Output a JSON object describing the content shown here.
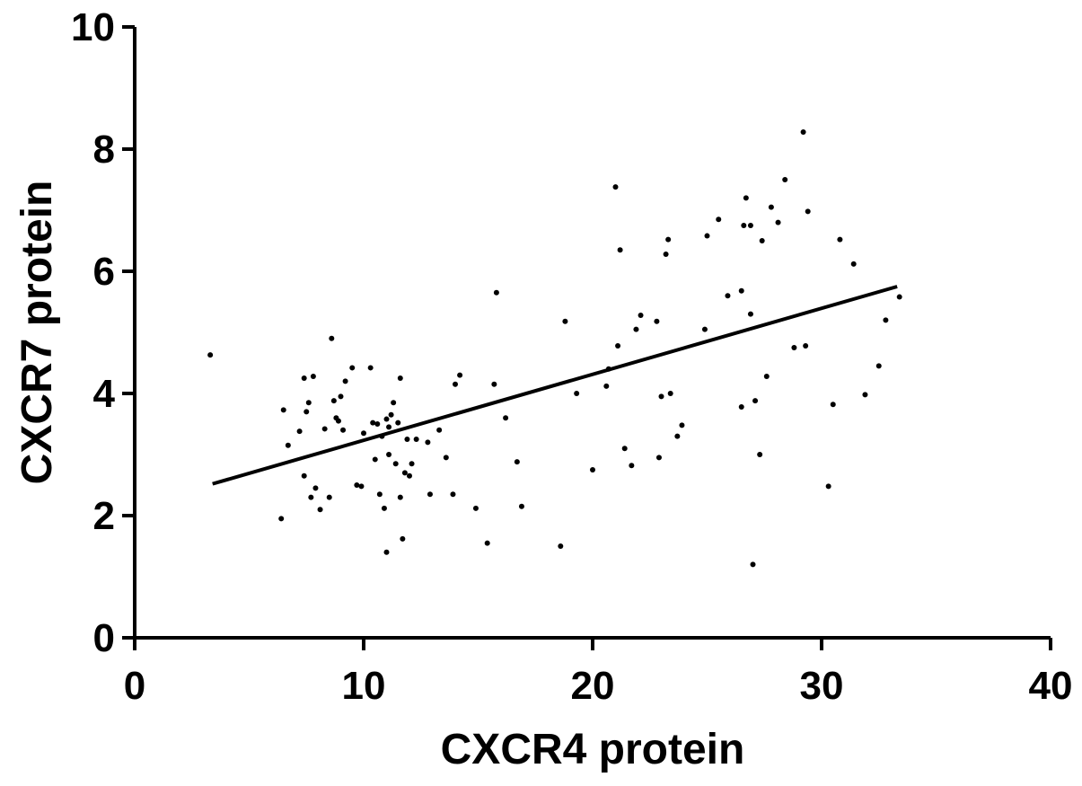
{
  "chart_data": {
    "type": "scatter",
    "title": "",
    "xlabel": "CXCR4 protein",
    "ylabel": "CXCR7 protein",
    "xlim": [
      0,
      40
    ],
    "ylim": [
      0,
      10
    ],
    "xticks": [
      0,
      10,
      20,
      30,
      40
    ],
    "yticks": [
      0,
      2,
      4,
      6,
      8,
      10
    ],
    "xtick_labels": [
      "0",
      "10",
      "20",
      "30",
      "40"
    ],
    "ytick_labels": [
      "0",
      "2",
      "4",
      "6",
      "8",
      "10"
    ],
    "grid": false,
    "legend": "none",
    "point_color": "#000000",
    "series": [
      {
        "points": [
          [
            3.3,
            4.63
          ],
          [
            6.4,
            1.95
          ],
          [
            6.5,
            3.73
          ],
          [
            6.7,
            3.15
          ],
          [
            7.2,
            3.38
          ],
          [
            7.4,
            2.65
          ],
          [
            7.4,
            4.25
          ],
          [
            7.5,
            3.7
          ],
          [
            7.6,
            3.85
          ],
          [
            7.7,
            2.3
          ],
          [
            7.8,
            4.28
          ],
          [
            7.9,
            2.45
          ],
          [
            8.1,
            2.1
          ],
          [
            8.3,
            3.42
          ],
          [
            8.5,
            2.3
          ],
          [
            8.6,
            4.9
          ],
          [
            8.7,
            3.88
          ],
          [
            8.8,
            3.6
          ],
          [
            8.9,
            3.55
          ],
          [
            9.0,
            3.95
          ],
          [
            9.1,
            3.4
          ],
          [
            9.2,
            4.2
          ],
          [
            9.5,
            4.42
          ],
          [
            9.7,
            2.5
          ],
          [
            9.9,
            2.48
          ],
          [
            10.0,
            3.35
          ],
          [
            10.3,
            4.42
          ],
          [
            10.4,
            3.52
          ],
          [
            10.5,
            2.92
          ],
          [
            10.6,
            3.5
          ],
          [
            10.7,
            2.35
          ],
          [
            10.8,
            3.3
          ],
          [
            10.9,
            2.12
          ],
          [
            11.0,
            1.4
          ],
          [
            11.0,
            3.58
          ],
          [
            11.1,
            3.0
          ],
          [
            11.1,
            3.45
          ],
          [
            11.2,
            3.65
          ],
          [
            11.3,
            3.85
          ],
          [
            11.4,
            2.85
          ],
          [
            11.5,
            3.52
          ],
          [
            11.6,
            4.25
          ],
          [
            11.6,
            2.3
          ],
          [
            11.7,
            1.62
          ],
          [
            11.8,
            2.7
          ],
          [
            11.9,
            3.25
          ],
          [
            12.0,
            2.65
          ],
          [
            12.1,
            2.85
          ],
          [
            12.3,
            3.25
          ],
          [
            12.8,
            3.2
          ],
          [
            12.9,
            2.35
          ],
          [
            13.3,
            3.4
          ],
          [
            13.6,
            2.95
          ],
          [
            13.9,
            2.35
          ],
          [
            14.0,
            4.15
          ],
          [
            14.2,
            4.3
          ],
          [
            14.9,
            2.12
          ],
          [
            15.4,
            1.55
          ],
          [
            15.7,
            4.15
          ],
          [
            15.8,
            5.65
          ],
          [
            16.2,
            3.6
          ],
          [
            16.7,
            2.88
          ],
          [
            16.9,
            2.15
          ],
          [
            18.6,
            1.5
          ],
          [
            18.8,
            5.18
          ],
          [
            19.3,
            4.0
          ],
          [
            20.0,
            2.75
          ],
          [
            20.6,
            4.12
          ],
          [
            20.7,
            4.4
          ],
          [
            21.0,
            7.38
          ],
          [
            21.1,
            4.78
          ],
          [
            21.2,
            6.35
          ],
          [
            21.4,
            3.1
          ],
          [
            21.7,
            2.82
          ],
          [
            21.9,
            5.05
          ],
          [
            22.1,
            5.28
          ],
          [
            22.8,
            5.18
          ],
          [
            22.9,
            2.95
          ],
          [
            23.0,
            3.95
          ],
          [
            23.2,
            6.28
          ],
          [
            23.3,
            6.52
          ],
          [
            23.4,
            4.0
          ],
          [
            23.7,
            3.3
          ],
          [
            23.9,
            3.48
          ],
          [
            24.9,
            5.05
          ],
          [
            25.0,
            6.58
          ],
          [
            25.5,
            6.85
          ],
          [
            25.9,
            5.6
          ],
          [
            26.5,
            5.68
          ],
          [
            26.5,
            3.78
          ],
          [
            26.6,
            6.75
          ],
          [
            26.7,
            7.2
          ],
          [
            26.9,
            5.3
          ],
          [
            26.9,
            6.75
          ],
          [
            27.0,
            1.2
          ],
          [
            27.1,
            3.88
          ],
          [
            27.3,
            3.0
          ],
          [
            27.4,
            6.5
          ],
          [
            27.6,
            4.28
          ],
          [
            27.8,
            7.05
          ],
          [
            28.1,
            6.8
          ],
          [
            28.4,
            7.5
          ],
          [
            28.8,
            4.75
          ],
          [
            29.2,
            8.28
          ],
          [
            29.3,
            4.78
          ],
          [
            29.4,
            6.98
          ],
          [
            30.3,
            2.48
          ],
          [
            30.5,
            3.82
          ],
          [
            30.8,
            6.52
          ],
          [
            31.4,
            6.12
          ],
          [
            31.9,
            3.98
          ],
          [
            32.5,
            4.45
          ],
          [
            32.8,
            5.2
          ],
          [
            33.4,
            5.58
          ]
        ]
      }
    ],
    "regression_line": {
      "x": [
        3.4,
        33.3
      ],
      "y": [
        2.52,
        5.75
      ]
    }
  }
}
